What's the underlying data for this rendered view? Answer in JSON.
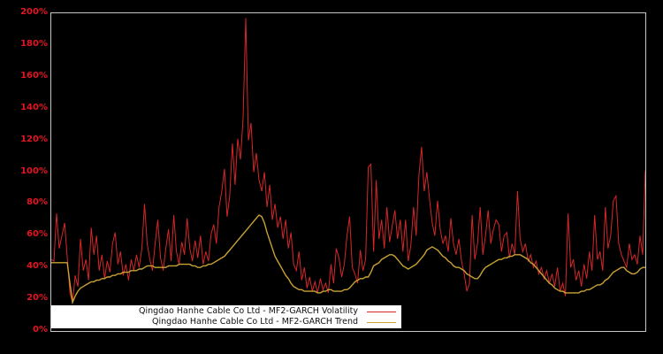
{
  "chart_data": {
    "type": "line",
    "title": "",
    "xlabel": "",
    "ylabel": "",
    "ylim": [
      0,
      200
    ],
    "grid": false,
    "x_axis_labels_visible": false,
    "legend_position": "lower-left",
    "y_tick_labels": [
      "0%",
      "20%",
      "40%",
      "60%",
      "80%",
      "100%",
      "120%",
      "140%",
      "160%",
      "180%",
      "200%"
    ],
    "y_tick_values": [
      0,
      20,
      40,
      60,
      80,
      100,
      120,
      140,
      160,
      180,
      200
    ],
    "series": [
      {
        "name": "Qingdao Hanhe Cable Co Ltd - MF2-GARCH Volatility",
        "color": "#d62728",
        "unit": "percent",
        "values": [
          45,
          44,
          74,
          52,
          60,
          68,
          46,
          24,
          18,
          35,
          28,
          58,
          38,
          45,
          32,
          65,
          48,
          60,
          38,
          48,
          33,
          44,
          37,
          55,
          62,
          42,
          50,
          35,
          42,
          32,
          45,
          38,
          48,
          40,
          52,
          80,
          55,
          45,
          38,
          55,
          70,
          46,
          38,
          52,
          64,
          44,
          73,
          50,
          42,
          56,
          48,
          71,
          52,
          44,
          57,
          46,
          60,
          42,
          50,
          44,
          61,
          67,
          55,
          78,
          88,
          102,
          72,
          85,
          118,
          92,
          121,
          108,
          134,
          197,
          120,
          131,
          100,
          112,
          95,
          88,
          100,
          78,
          92,
          70,
          80,
          65,
          72,
          58,
          70,
          52,
          62,
          42,
          38,
          50,
          32,
          40,
          27,
          34,
          25,
          31,
          24,
          33,
          26,
          30,
          24,
          42,
          30,
          52,
          46,
          34,
          42,
          60,
          72,
          40,
          36,
          30,
          51,
          38,
          45,
          103,
          105,
          50,
          95,
          58,
          70,
          52,
          78,
          56,
          66,
          76,
          58,
          70,
          50,
          70,
          44,
          54,
          78,
          60,
          98,
          116,
          88,
          100,
          83,
          68,
          60,
          82,
          64,
          55,
          60,
          50,
          71,
          55,
          48,
          58,
          44,
          36,
          25,
          30,
          73,
          45,
          55,
          78,
          48,
          60,
          76,
          55,
          64,
          70,
          67,
          50,
          60,
          62,
          46,
          55,
          48,
          88,
          58,
          50,
          55,
          44,
          48,
          40,
          44,
          36,
          40,
          33,
          38,
          30,
          36,
          28,
          40,
          25,
          30,
          22,
          74,
          40,
          45,
          32,
          38,
          28,
          42,
          33,
          50,
          38,
          73,
          45,
          50,
          38,
          78,
          52,
          60,
          82,
          85,
          55,
          48,
          44,
          40,
          55,
          45,
          48,
          42,
          60,
          48,
          101
        ]
      },
      {
        "name": "Qingdao Hanhe Cable Co Ltd - MF2-GARCH Trend",
        "color": "#c8a232",
        "unit": "percent",
        "values": [
          43,
          43,
          43,
          43,
          43,
          43,
          43,
          30,
          18,
          22,
          25,
          27,
          28,
          29,
          30,
          31,
          31,
          32,
          32,
          33,
          33,
          34,
          34,
          35,
          35,
          36,
          36,
          37,
          37,
          37,
          38,
          38,
          38,
          39,
          39,
          40,
          41,
          41,
          41,
          40,
          40,
          40,
          40,
          40,
          41,
          41,
          41,
          41,
          42,
          42,
          42,
          42,
          42,
          41,
          41,
          40,
          40,
          41,
          41,
          42,
          42,
          43,
          44,
          45,
          46,
          47,
          49,
          51,
          53,
          55,
          57,
          59,
          61,
          63,
          65,
          67,
          69,
          71,
          73,
          72,
          68,
          62,
          57,
          52,
          47,
          44,
          41,
          38,
          35,
          33,
          30,
          28,
          27,
          26,
          26,
          25,
          25,
          25,
          25,
          25,
          24,
          24,
          25,
          25,
          26,
          26,
          25,
          25,
          25,
          25,
          26,
          26,
          27,
          29,
          31,
          32,
          33,
          33,
          34,
          34,
          37,
          41,
          42,
          43,
          45,
          46,
          47,
          48,
          48,
          47,
          45,
          43,
          41,
          40,
          39,
          40,
          41,
          42,
          44,
          46,
          48,
          51,
          52,
          53,
          52,
          51,
          49,
          47,
          46,
          44,
          43,
          41,
          40,
          40,
          39,
          38,
          36,
          35,
          34,
          33,
          33,
          35,
          38,
          40,
          41,
          42,
          43,
          44,
          45,
          45,
          46,
          46,
          47,
          47,
          48,
          48,
          48,
          47,
          46,
          45,
          43,
          42,
          40,
          38,
          36,
          34,
          32,
          30,
          29,
          27,
          26,
          25,
          25,
          24,
          24,
          24,
          24,
          24,
          24,
          25,
          25,
          26,
          26,
          27,
          28,
          29,
          29,
          30,
          32,
          33,
          35,
          37,
          38,
          39,
          40,
          40,
          38,
          37,
          36,
          36,
          37,
          39,
          40,
          40
        ]
      }
    ]
  },
  "legend": {
    "entries": [
      {
        "label": "Qingdao Hanhe Cable Co Ltd - MF2-GARCH Volatility",
        "color": "#d62728"
      },
      {
        "label": "Qingdao Hanhe Cable Co Ltd - MF2-GARCH Trend",
        "color": "#c8a232"
      }
    ]
  },
  "colors": {
    "background": "#000000",
    "plot_border": "#c8c8c8",
    "tick_label": "#e01622",
    "legend_background": "#ffffff",
    "legend_text": "#111111"
  }
}
